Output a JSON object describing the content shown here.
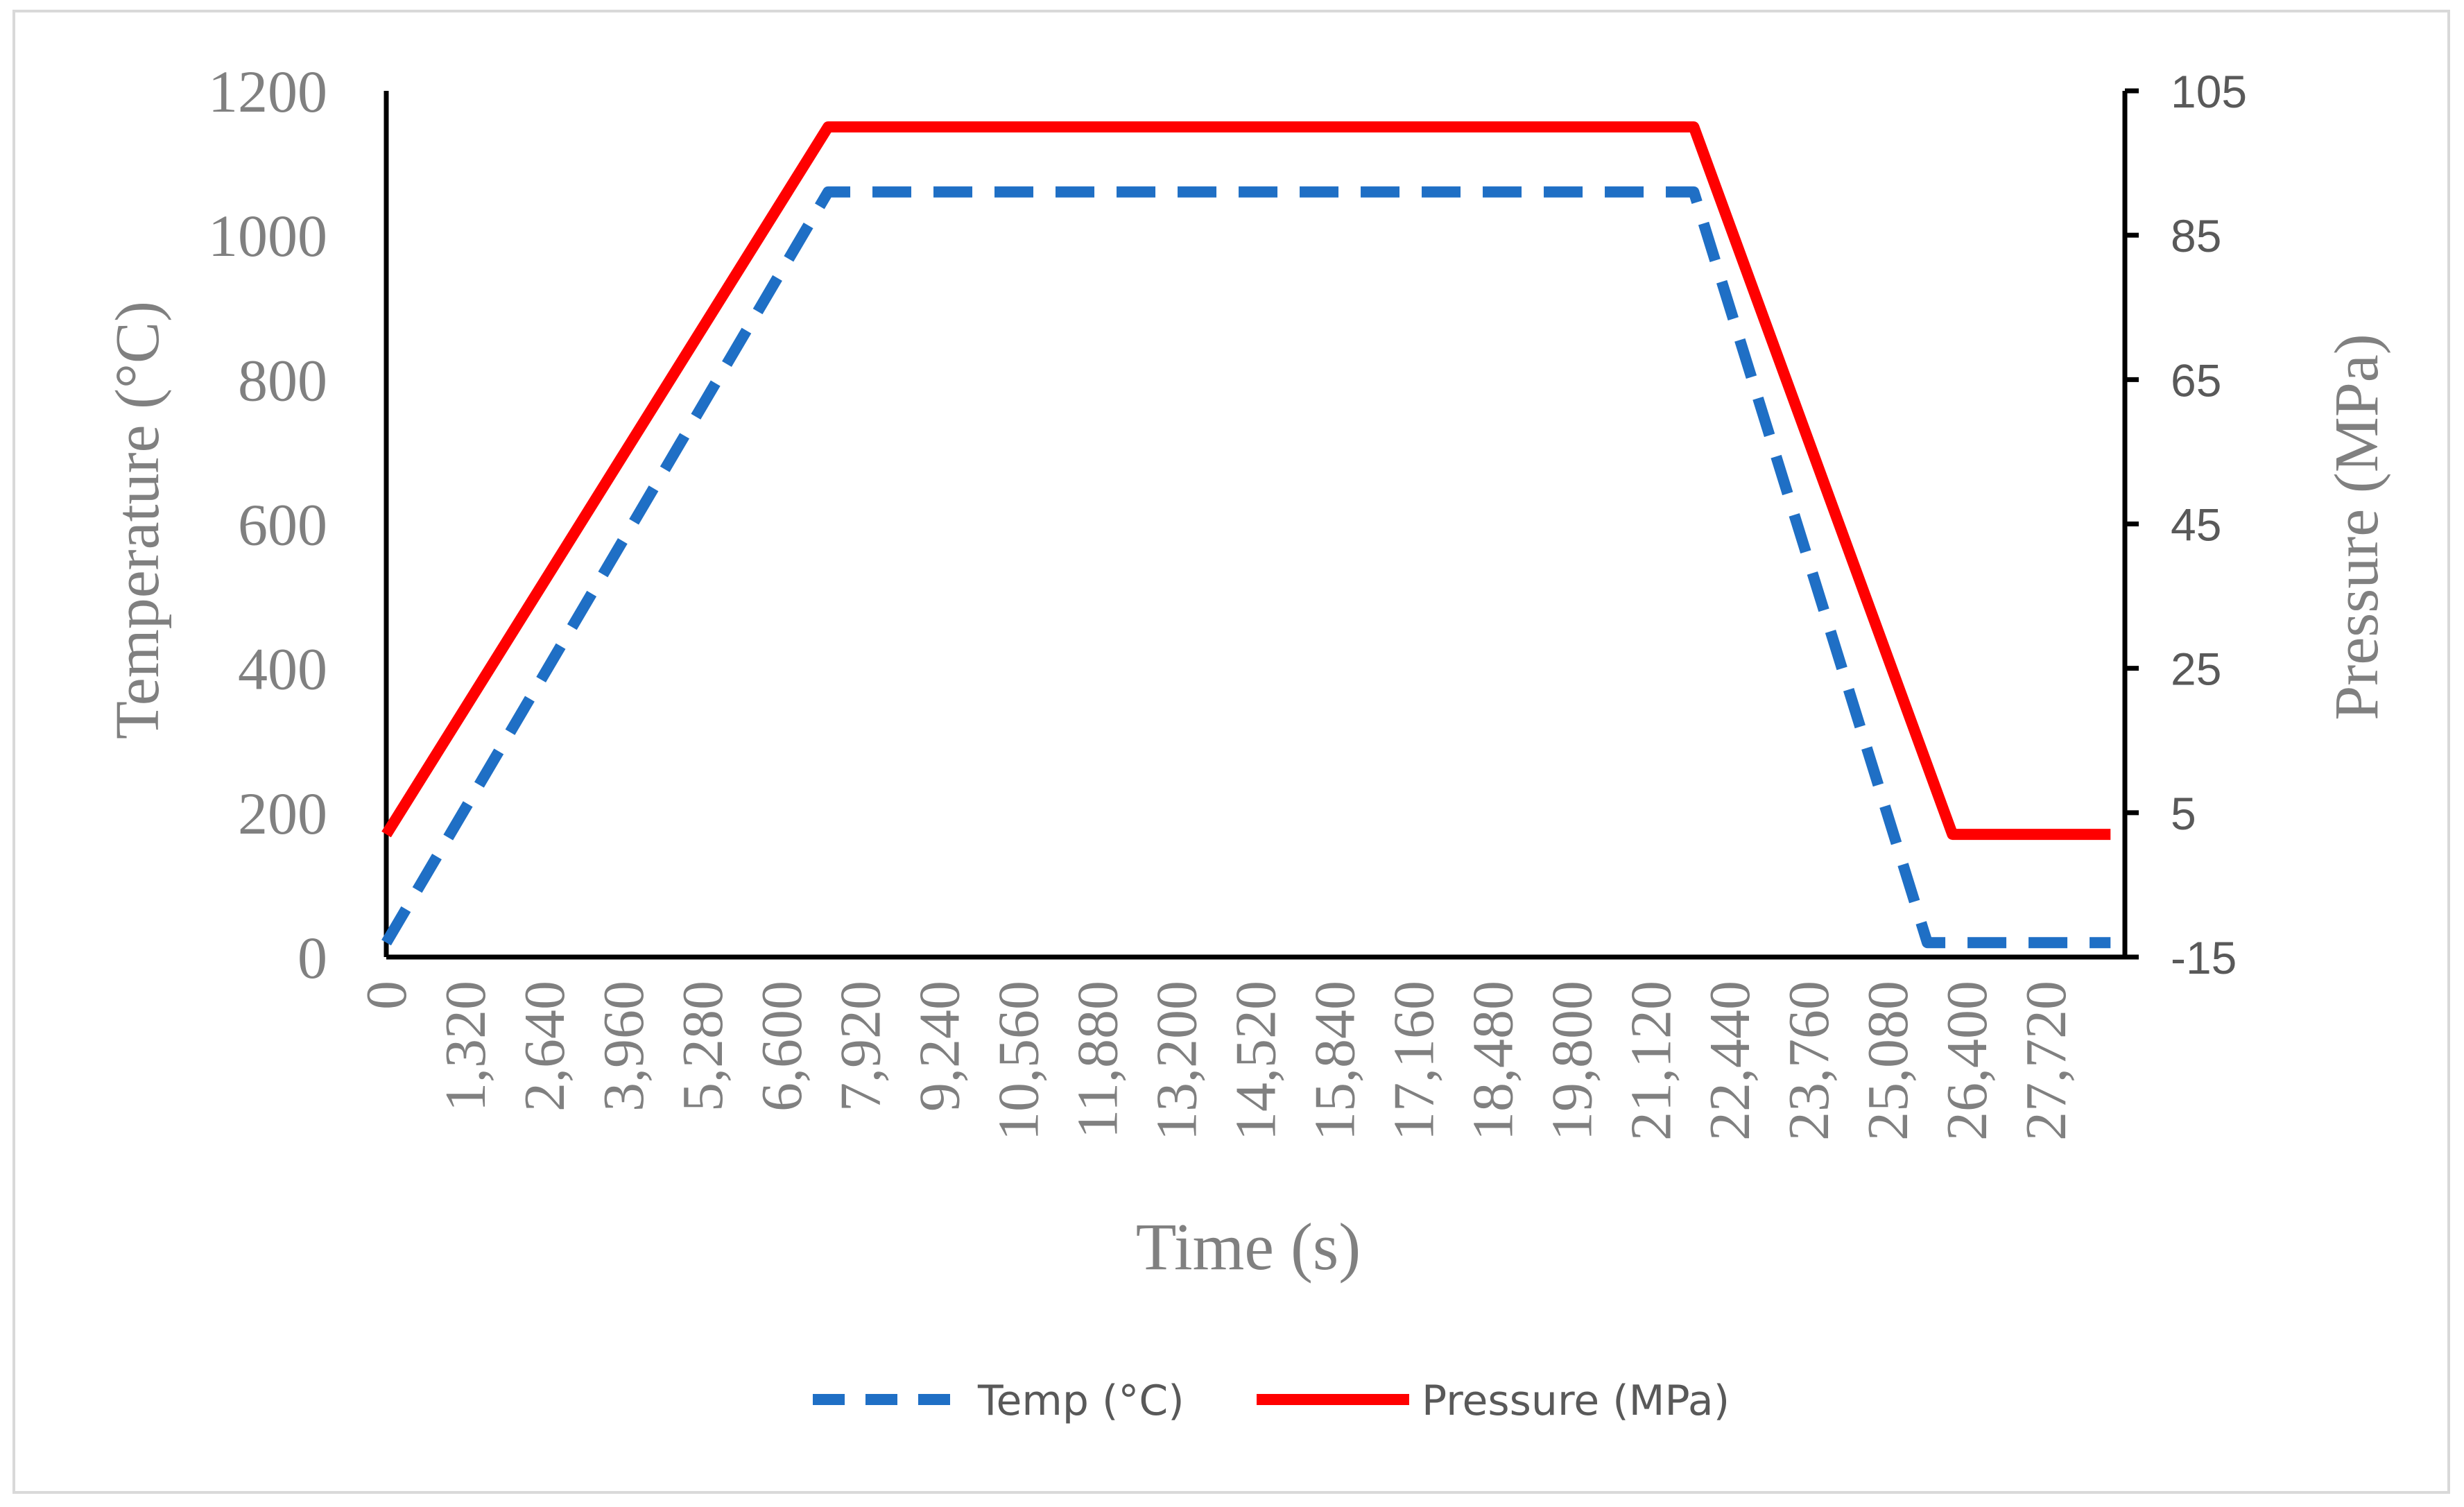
{
  "chart_data": {
    "type": "line",
    "x_axis": {
      "title": "Time (s)",
      "range": [
        0,
        29040
      ],
      "tick_labels": [
        "0",
        "1,320",
        "2,640",
        "3,960",
        "5,280",
        "6,600",
        "7,920",
        "9,240",
        "10,560",
        "11,880",
        "13,200",
        "14,520",
        "15,840",
        "17,160",
        "18,480",
        "19,800",
        "21,120",
        "22,440",
        "23,760",
        "25,080",
        "26,400",
        "27,720"
      ]
    },
    "y_axis_left": {
      "title": "Temperature (°C)",
      "range": [
        0,
        1200
      ],
      "ticks": [
        0,
        200,
        400,
        600,
        800,
        1000,
        1200
      ],
      "tick_labels": [
        "0",
        "200",
        "400",
        "600",
        "800",
        "1000",
        "1200"
      ]
    },
    "y_axis_right": {
      "title": "Pressure (MPa)",
      "range": [
        -15,
        105
      ],
      "ticks": [
        -15,
        5,
        25,
        45,
        65,
        85,
        105
      ],
      "tick_labels": [
        "-15",
        "5",
        "25",
        "45",
        "65",
        "85",
        "105"
      ]
    },
    "series": [
      {
        "name": "Temp (°C)",
        "axis": "left",
        "style": "dashed",
        "color": "#1f6fc5",
        "x": [
          0,
          7380,
          21840,
          25740,
          28800
        ],
        "y": [
          20,
          1060,
          1060,
          20,
          20
        ]
      },
      {
        "name": "Pressure (MPa)",
        "axis": "right",
        "style": "solid",
        "color": "#ff0000",
        "x": [
          0,
          7380,
          21840,
          26160,
          28800
        ],
        "y": [
          2,
          100,
          100,
          2,
          2
        ]
      }
    ],
    "legend": {
      "position": "bottom",
      "entries": [
        "Temp (°C)",
        "Pressure (MPa)"
      ]
    }
  }
}
